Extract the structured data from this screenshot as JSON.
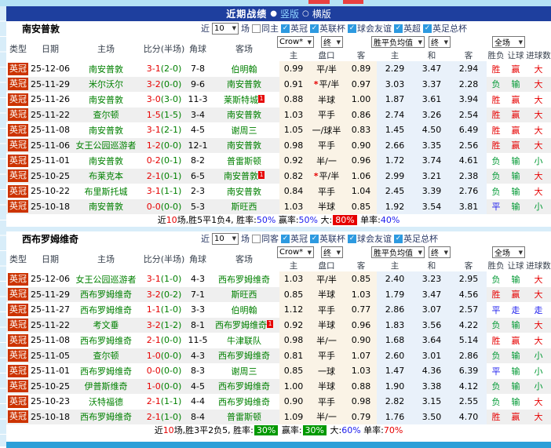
{
  "topbar": {
    "title": "近期战绩",
    "options": [
      {
        "label": "竖版",
        "selected": true
      },
      {
        "label": "横版",
        "selected": false
      }
    ]
  },
  "icons": {
    "dropdown": "▼",
    "check": "✓",
    "radio_on": "●",
    "radio_off": "○",
    "star": "*"
  },
  "colors": {
    "header_bar": "#1e3f9e",
    "league_badge": "#cc3300",
    "team_link": "#008000",
    "win_red": "#e60000",
    "lose_green": "#009933",
    "draw_blue": "#1a1aee",
    "box_red": "#e60000",
    "box_green": "#009900",
    "bottom_bar": "#2b9fd8"
  },
  "controls": {
    "near_label": "近",
    "count_value": "10",
    "games_label": "场",
    "crow_label": "Crow*",
    "final_label": "终",
    "avg_label": "胜平负均值",
    "scope_label": "全场"
  },
  "columns": {
    "type": "类型",
    "date": "日期",
    "home": "主场",
    "score": "比分(半场)",
    "corner": "角球",
    "away": "客场",
    "odds_home": "主",
    "odds_line": "盘口",
    "odds_away": "客",
    "avg_home": "主",
    "avg_draw": "和",
    "avg_away": "客",
    "res_wdl": "胜负",
    "res_handicap": "让球",
    "res_goals": "进球数"
  },
  "sections": [
    {
      "team": "南安普敦",
      "same_side_label": "同主",
      "leagues": [
        "英冠",
        "英联杯",
        "球会友谊",
        "英超",
        "英足总杯"
      ],
      "rows": [
        {
          "league": "英冠",
          "date": "25-12-06",
          "home": "南安普敦",
          "home_mark": "",
          "score": "3-1",
          "half": "(2-0)",
          "corners": "7-8",
          "away": "伯明翰",
          "away_mark": "",
          "crow": [
            "0.99",
            "平/半",
            "0.89"
          ],
          "line_star": false,
          "avg": [
            "2.29",
            "3.47",
            "2.94"
          ],
          "results": [
            "胜",
            "赢",
            "大"
          ],
          "result_colors": [
            "red",
            "red",
            "red"
          ]
        },
        {
          "league": "英冠",
          "date": "25-11-29",
          "home": "米尔沃尔",
          "home_mark": "",
          "score": "3-2",
          "half": "(0-0)",
          "corners": "9-6",
          "away": "南安普敦",
          "away_mark": "",
          "crow": [
            "0.91",
            "平/半",
            "0.97"
          ],
          "line_star": true,
          "avg": [
            "3.03",
            "3.37",
            "2.28"
          ],
          "results": [
            "负",
            "输",
            "大"
          ],
          "result_colors": [
            "green",
            "green",
            "red"
          ]
        },
        {
          "league": "英冠",
          "date": "25-11-26",
          "home": "南安普敦",
          "home_mark": "",
          "score": "3-0",
          "half": "(3-0)",
          "corners": "11-3",
          "away": "莱斯特城",
          "away_mark": "1",
          "crow": [
            "0.88",
            "半球",
            "1.00"
          ],
          "line_star": false,
          "avg": [
            "1.87",
            "3.61",
            "3.94"
          ],
          "results": [
            "胜",
            "赢",
            "大"
          ],
          "result_colors": [
            "red",
            "red",
            "red"
          ]
        },
        {
          "league": "英冠",
          "date": "25-11-22",
          "home": "查尔顿",
          "home_mark": "",
          "score": "1-5",
          "half": "(1-5)",
          "corners": "3-4",
          "away": "南安普敦",
          "away_mark": "",
          "crow": [
            "1.03",
            "平手",
            "0.86"
          ],
          "line_star": false,
          "avg": [
            "2.74",
            "3.26",
            "2.54"
          ],
          "results": [
            "胜",
            "赢",
            "大"
          ],
          "result_colors": [
            "red",
            "red",
            "red"
          ]
        },
        {
          "league": "英冠",
          "date": "25-11-08",
          "home": "南安普敦",
          "home_mark": "",
          "score": "3-1",
          "half": "(2-1)",
          "corners": "4-5",
          "away": "谢周三",
          "away_mark": "",
          "crow": [
            "1.05",
            "一/球半",
            "0.83"
          ],
          "line_star": false,
          "avg": [
            "1.45",
            "4.50",
            "6.49"
          ],
          "results": [
            "胜",
            "赢",
            "大"
          ],
          "result_colors": [
            "red",
            "red",
            "red"
          ]
        },
        {
          "league": "英冠",
          "date": "25-11-06",
          "home": "女王公园巡游者",
          "home_mark": "",
          "score": "1-2",
          "half": "(0-0)",
          "corners": "12-1",
          "away": "南安普敦",
          "away_mark": "",
          "crow": [
            "0.98",
            "平手",
            "0.90"
          ],
          "line_star": false,
          "avg": [
            "2.66",
            "3.35",
            "2.56"
          ],
          "results": [
            "胜",
            "赢",
            "大"
          ],
          "result_colors": [
            "red",
            "red",
            "red"
          ]
        },
        {
          "league": "英冠",
          "date": "25-11-01",
          "home": "南安普敦",
          "home_mark": "",
          "score": "0-2",
          "half": "(0-1)",
          "corners": "8-2",
          "away": "普雷斯顿",
          "away_mark": "",
          "crow": [
            "0.92",
            "半/一",
            "0.96"
          ],
          "line_star": false,
          "avg": [
            "1.72",
            "3.74",
            "4.61"
          ],
          "results": [
            "负",
            "输",
            "小"
          ],
          "result_colors": [
            "green",
            "green",
            "green"
          ]
        },
        {
          "league": "英冠",
          "date": "25-10-25",
          "home": "布莱克本",
          "home_mark": "",
          "score": "2-1",
          "half": "(0-1)",
          "corners": "6-5",
          "away": "南安普敦",
          "away_mark": "1",
          "crow": [
            "0.82",
            "平/半",
            "1.06"
          ],
          "line_star": true,
          "avg": [
            "2.99",
            "3.21",
            "2.38"
          ],
          "results": [
            "负",
            "输",
            "大"
          ],
          "result_colors": [
            "green",
            "green",
            "red"
          ]
        },
        {
          "league": "英冠",
          "date": "25-10-22",
          "home": "布里斯托城",
          "home_mark": "",
          "score": "3-1",
          "half": "(1-1)",
          "corners": "2-3",
          "away": "南安普敦",
          "away_mark": "",
          "crow": [
            "0.84",
            "平手",
            "1.04"
          ],
          "line_star": false,
          "avg": [
            "2.45",
            "3.39",
            "2.76"
          ],
          "results": [
            "负",
            "输",
            "大"
          ],
          "result_colors": [
            "green",
            "green",
            "red"
          ]
        },
        {
          "league": "英冠",
          "date": "25-10-18",
          "home": "南安普敦",
          "home_mark": "",
          "score": "0-0",
          "half": "(0-0)",
          "corners": "5-3",
          "away": "斯旺西",
          "away_mark": "",
          "crow": [
            "1.03",
            "半球",
            "0.85"
          ],
          "line_star": false,
          "avg": [
            "1.92",
            "3.54",
            "3.81"
          ],
          "results": [
            "平",
            "输",
            "小"
          ],
          "result_colors": [
            "blue",
            "green",
            "green"
          ]
        }
      ],
      "summary": [
        {
          "text": "近",
          "style": "plain"
        },
        {
          "text": "10",
          "style": "red"
        },
        {
          "text": "场,胜5平1负4, 胜率:",
          "style": "plain"
        },
        {
          "text": "50%",
          "style": "blue"
        },
        {
          "text": " 赢率:",
          "style": "plain"
        },
        {
          "text": "50%",
          "style": "blue"
        },
        {
          "text": " 大:",
          "style": "plain"
        },
        {
          "text": "80%",
          "style": "box-red"
        },
        {
          "text": " 单率:",
          "style": "plain"
        },
        {
          "text": "40%",
          "style": "blue"
        }
      ]
    },
    {
      "team": "西布罗姆维奇",
      "same_side_label": "同客",
      "leagues": [
        "英冠",
        "英联杯",
        "球会友谊",
        "英足总杯"
      ],
      "rows": [
        {
          "league": "英冠",
          "date": "25-12-06",
          "home": "女王公园巡游者",
          "home_mark": "",
          "score": "3-1",
          "half": "(1-0)",
          "corners": "4-3",
          "away": "西布罗姆维奇",
          "away_mark": "",
          "crow": [
            "1.03",
            "平/半",
            "0.85"
          ],
          "line_star": false,
          "avg": [
            "2.40",
            "3.23",
            "2.95"
          ],
          "results": [
            "负",
            "输",
            "大"
          ],
          "result_colors": [
            "green",
            "green",
            "red"
          ]
        },
        {
          "league": "英冠",
          "date": "25-11-29",
          "home": "西布罗姆维奇",
          "home_mark": "",
          "score": "3-2",
          "half": "(0-2)",
          "corners": "7-1",
          "away": "斯旺西",
          "away_mark": "",
          "crow": [
            "0.85",
            "半球",
            "1.03"
          ],
          "line_star": false,
          "avg": [
            "1.79",
            "3.47",
            "4.56"
          ],
          "results": [
            "胜",
            "赢",
            "大"
          ],
          "result_colors": [
            "red",
            "red",
            "red"
          ]
        },
        {
          "league": "英冠",
          "date": "25-11-27",
          "home": "西布罗姆维奇",
          "home_mark": "",
          "score": "1-1",
          "half": "(1-0)",
          "corners": "3-3",
          "away": "伯明翰",
          "away_mark": "",
          "crow": [
            "1.12",
            "平手",
            "0.77"
          ],
          "line_star": false,
          "avg": [
            "2.86",
            "3.07",
            "2.57"
          ],
          "results": [
            "平",
            "走",
            "走"
          ],
          "result_colors": [
            "blue",
            "blue",
            "blue"
          ]
        },
        {
          "league": "英冠",
          "date": "25-11-22",
          "home": "考文垂",
          "home_mark": "",
          "score": "3-2",
          "half": "(1-2)",
          "corners": "8-1",
          "away": "西布罗姆维奇",
          "away_mark": "1",
          "crow": [
            "0.92",
            "半球",
            "0.96"
          ],
          "line_star": false,
          "avg": [
            "1.83",
            "3.56",
            "4.22"
          ],
          "results": [
            "负",
            "输",
            "大"
          ],
          "result_colors": [
            "green",
            "green",
            "red"
          ]
        },
        {
          "league": "英冠",
          "date": "25-11-08",
          "home": "西布罗姆维奇",
          "home_mark": "",
          "score": "2-1",
          "half": "(0-0)",
          "corners": "11-5",
          "away": "牛津联队",
          "away_mark": "",
          "crow": [
            "0.98",
            "半/一",
            "0.90"
          ],
          "line_star": false,
          "avg": [
            "1.68",
            "3.64",
            "5.14"
          ],
          "results": [
            "胜",
            "赢",
            "大"
          ],
          "result_colors": [
            "red",
            "red",
            "red"
          ]
        },
        {
          "league": "英冠",
          "date": "25-11-05",
          "home": "查尔顿",
          "home_mark": "",
          "score": "1-0",
          "half": "(0-0)",
          "corners": "4-3",
          "away": "西布罗姆维奇",
          "away_mark": "",
          "crow": [
            "0.81",
            "平手",
            "1.07"
          ],
          "line_star": false,
          "avg": [
            "2.60",
            "3.01",
            "2.86"
          ],
          "results": [
            "负",
            "输",
            "小"
          ],
          "result_colors": [
            "green",
            "green",
            "green"
          ]
        },
        {
          "league": "英冠",
          "date": "25-11-01",
          "home": "西布罗姆维奇",
          "home_mark": "",
          "score": "0-0",
          "half": "(0-0)",
          "corners": "8-3",
          "away": "谢周三",
          "away_mark": "",
          "crow": [
            "0.85",
            "一球",
            "1.03"
          ],
          "line_star": false,
          "avg": [
            "1.47",
            "4.36",
            "6.39"
          ],
          "results": [
            "平",
            "输",
            "小"
          ],
          "result_colors": [
            "blue",
            "green",
            "green"
          ]
        },
        {
          "league": "英冠",
          "date": "25-10-25",
          "home": "伊普斯维奇",
          "home_mark": "",
          "score": "1-0",
          "half": "(0-0)",
          "corners": "4-5",
          "away": "西布罗姆维奇",
          "away_mark": "",
          "crow": [
            "1.00",
            "半球",
            "0.88"
          ],
          "line_star": false,
          "avg": [
            "1.90",
            "3.38",
            "4.12"
          ],
          "results": [
            "负",
            "输",
            "小"
          ],
          "result_colors": [
            "green",
            "green",
            "green"
          ]
        },
        {
          "league": "英冠",
          "date": "25-10-23",
          "home": "沃特福德",
          "home_mark": "",
          "score": "2-1",
          "half": "(1-1)",
          "corners": "4-4",
          "away": "西布罗姆维奇",
          "away_mark": "",
          "crow": [
            "0.90",
            "平手",
            "0.98"
          ],
          "line_star": false,
          "avg": [
            "2.82",
            "3.15",
            "2.55"
          ],
          "results": [
            "负",
            "输",
            "大"
          ],
          "result_colors": [
            "green",
            "green",
            "red"
          ]
        },
        {
          "league": "英冠",
          "date": "25-10-18",
          "home": "西布罗姆维奇",
          "home_mark": "",
          "score": "2-1",
          "half": "(1-0)",
          "corners": "8-4",
          "away": "普雷斯顿",
          "away_mark": "",
          "crow": [
            "1.09",
            "半/一",
            "0.79"
          ],
          "line_star": false,
          "avg": [
            "1.76",
            "3.50",
            "4.70"
          ],
          "results": [
            "胜",
            "赢",
            "大"
          ],
          "result_colors": [
            "red",
            "red",
            "red"
          ]
        }
      ],
      "summary": [
        {
          "text": "近",
          "style": "plain"
        },
        {
          "text": "10",
          "style": "red"
        },
        {
          "text": "场,胜3平2负5, 胜率:",
          "style": "plain"
        },
        {
          "text": "30%",
          "style": "box-green"
        },
        {
          "text": " 赢率:",
          "style": "plain"
        },
        {
          "text": "30%",
          "style": "box-green"
        },
        {
          "text": " 大:",
          "style": "plain"
        },
        {
          "text": "60%",
          "style": "blue"
        },
        {
          "text": " 单率:",
          "style": "plain"
        },
        {
          "text": "70%",
          "style": "red"
        }
      ]
    }
  ]
}
